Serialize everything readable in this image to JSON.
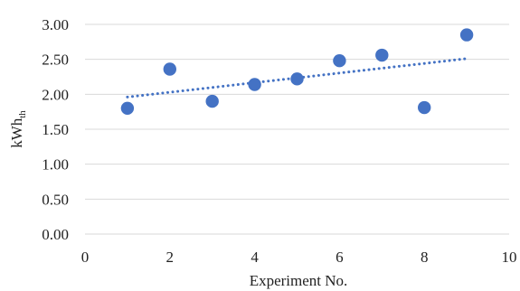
{
  "chart_data": {
    "type": "scatter",
    "title": "",
    "xlabel": "Experiment No.",
    "ylabel": "kWh",
    "ylabel_subscript": "th",
    "xlim": [
      0,
      10
    ],
    "ylim": [
      0,
      3
    ],
    "x_ticks": [
      0,
      2,
      4,
      6,
      8,
      10
    ],
    "x_tick_labels": [
      "0",
      "2",
      "4",
      "6",
      "8",
      "10"
    ],
    "y_ticks": [
      0,
      0.5,
      1,
      1.5,
      2,
      2.5,
      3
    ],
    "y_tick_labels": [
      "0.00",
      "0.50",
      "1.00",
      "1.50",
      "2.00",
      "2.50",
      "3.00"
    ],
    "grid": "horizontal",
    "legend": "none",
    "series": [
      {
        "x": [
          1,
          2,
          3,
          4,
          5,
          6,
          7,
          8,
          9
        ],
        "y": [
          1.8,
          2.36,
          1.9,
          2.14,
          2.22,
          2.48,
          2.56,
          1.81,
          2.85
        ],
        "color": "#4472c4"
      }
    ],
    "trendline": {
      "type": "linear",
      "style": "dotted",
      "color": "#4472c4",
      "x_range": [
        1,
        9
      ],
      "y_start": 1.96,
      "y_end": 2.51
    }
  }
}
